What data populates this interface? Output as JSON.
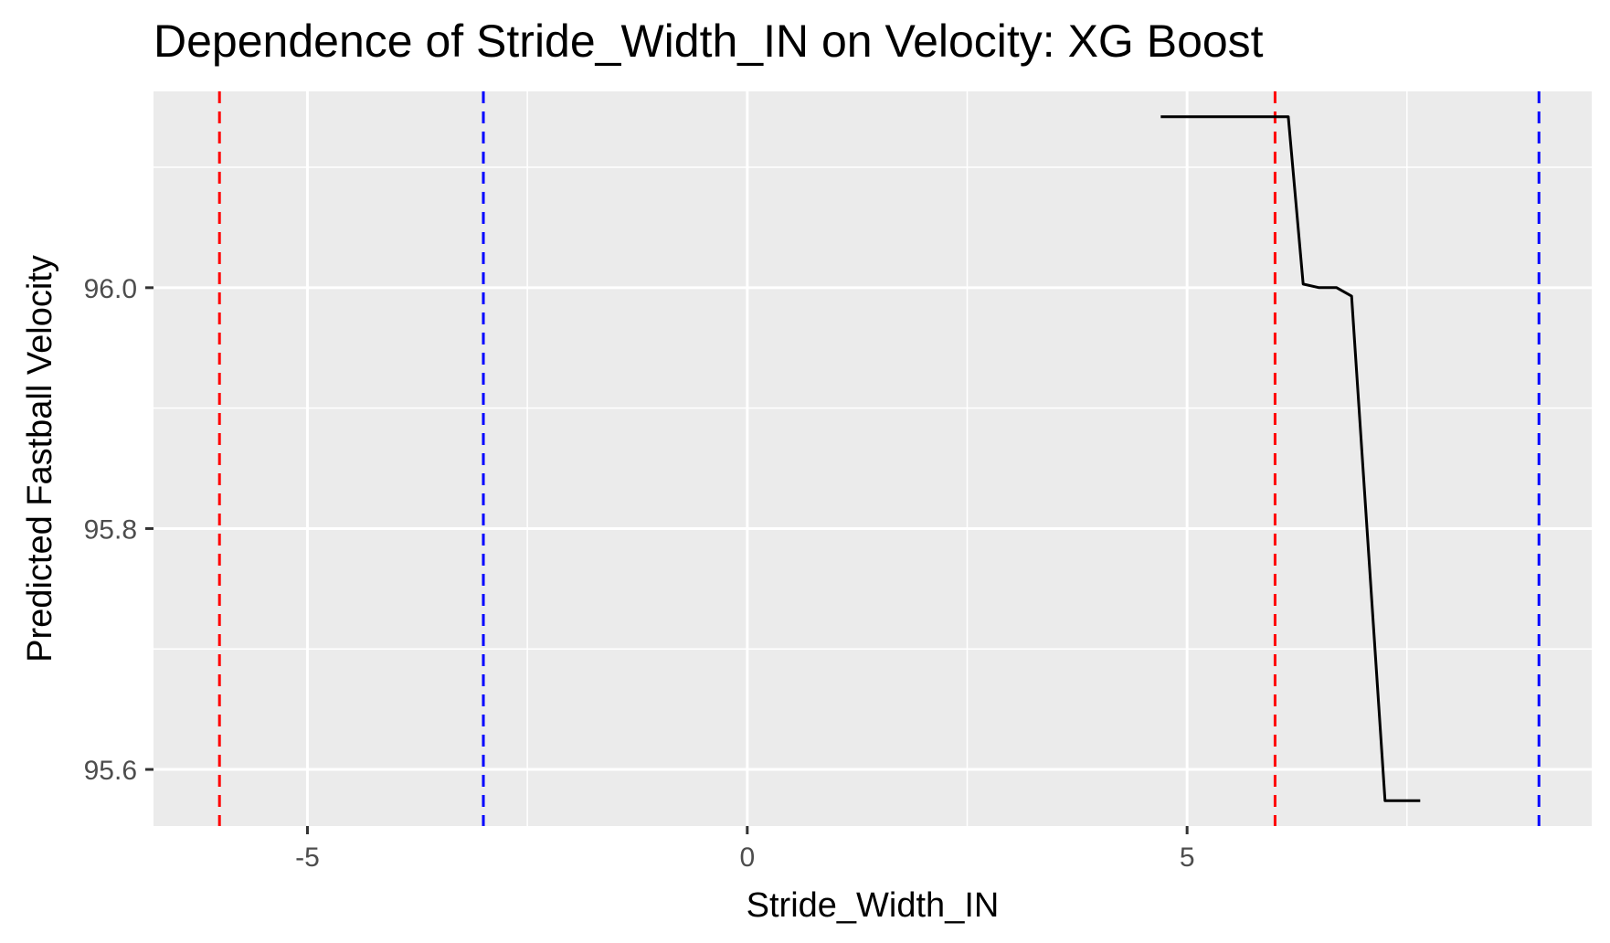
{
  "chart_data": {
    "type": "line",
    "title": "Dependence of Stride_Width_IN on Velocity: XG Boost",
    "xlabel": "Stride_Width_IN",
    "ylabel": "Predicted Fastball Velocity",
    "xlim": [
      -6.75,
      9.6
    ],
    "ylim": [
      95.553,
      96.163
    ],
    "x_ticks": [
      -5,
      0,
      5
    ],
    "x_tick_labels": [
      "-5",
      "0",
      "5"
    ],
    "y_ticks": [
      95.6,
      95.8,
      96.0
    ],
    "y_tick_labels": [
      "95.6",
      "95.8",
      "96.0"
    ],
    "x_minor_ticks": [
      -2.5,
      2.5,
      7.5
    ],
    "y_minor_ticks": [
      95.7,
      95.9,
      96.1
    ],
    "grid": true,
    "legend": "none",
    "series": [
      {
        "color": "#000000",
        "x": [
          4.7,
          6.15,
          6.32,
          6.5,
          6.7,
          6.87,
          7.25,
          7.65
        ],
        "y": [
          96.142,
          96.142,
          96.003,
          96.0,
          96.0,
          95.993,
          95.574,
          95.574
        ]
      }
    ],
    "reference_lines": [
      {
        "x": -6.0,
        "color": "#ff0000",
        "style": "dashed"
      },
      {
        "x": -3.0,
        "color": "#0000ff",
        "style": "dashed"
      },
      {
        "x": 6.0,
        "color": "#ff0000",
        "style": "dashed"
      },
      {
        "x": 9.0,
        "color": "#0000ff",
        "style": "dashed"
      }
    ],
    "colors": {
      "panel_background": "#ebebeb",
      "gridline": "#ffffff",
      "line": "#000000"
    }
  }
}
